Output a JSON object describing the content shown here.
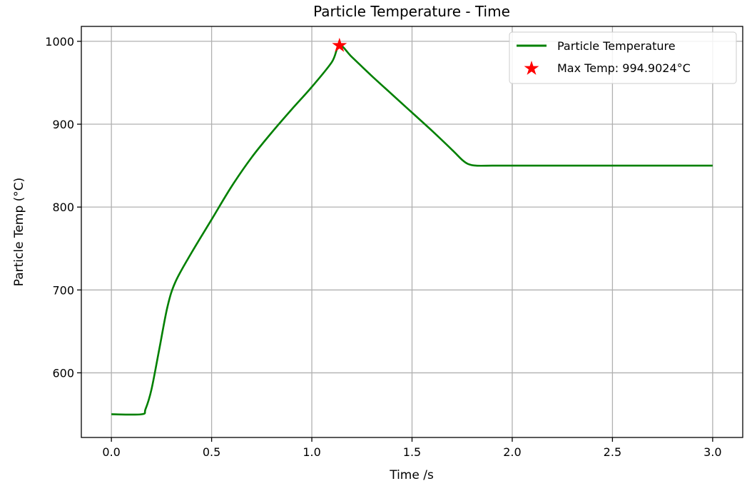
{
  "chart_data": {
    "type": "line",
    "title": "Particle Temperature - Time",
    "xlabel": "Time /s",
    "ylabel": "Particle Temp (°C)",
    "xlim": [
      -0.15,
      3.15
    ],
    "ylim": [
      522,
      1018
    ],
    "xticks": [
      0.0,
      0.5,
      1.0,
      1.5,
      2.0,
      2.5,
      3.0
    ],
    "xtick_labels": [
      "0.0",
      "0.5",
      "1.0",
      "1.5",
      "2.0",
      "2.5",
      "3.0"
    ],
    "yticks": [
      600,
      700,
      800,
      900,
      1000
    ],
    "ytick_labels": [
      "600",
      "700",
      "800",
      "900",
      "1000"
    ],
    "grid": true,
    "legend_position": "top-right",
    "series": [
      {
        "name": "Particle Temperature",
        "color": "#008000",
        "x": [
          0.0,
          0.15,
          0.17,
          0.2,
          0.24,
          0.28,
          0.32,
          0.4,
          0.5,
          0.6,
          0.7,
          0.8,
          0.9,
          1.0,
          1.1,
          1.138,
          1.2,
          1.3,
          1.4,
          1.5,
          1.6,
          1.7,
          1.75,
          1.78,
          1.82,
          1.9,
          2.0,
          2.5,
          3.0
        ],
        "y": [
          550,
          550,
          556,
          580,
          630,
          680,
          710,
          745,
          785,
          825,
          860,
          890,
          918,
          945,
          975,
          995,
          981,
          958,
          936,
          914,
          892,
          869,
          857,
          852,
          850,
          850,
          850,
          850,
          850
        ]
      }
    ],
    "annotations": [
      {
        "name": "Max Temp: 994.9024°C",
        "type": "marker",
        "marker": "star",
        "color": "#ff0000",
        "x": 1.138,
        "y": 994.9024
      }
    ]
  }
}
